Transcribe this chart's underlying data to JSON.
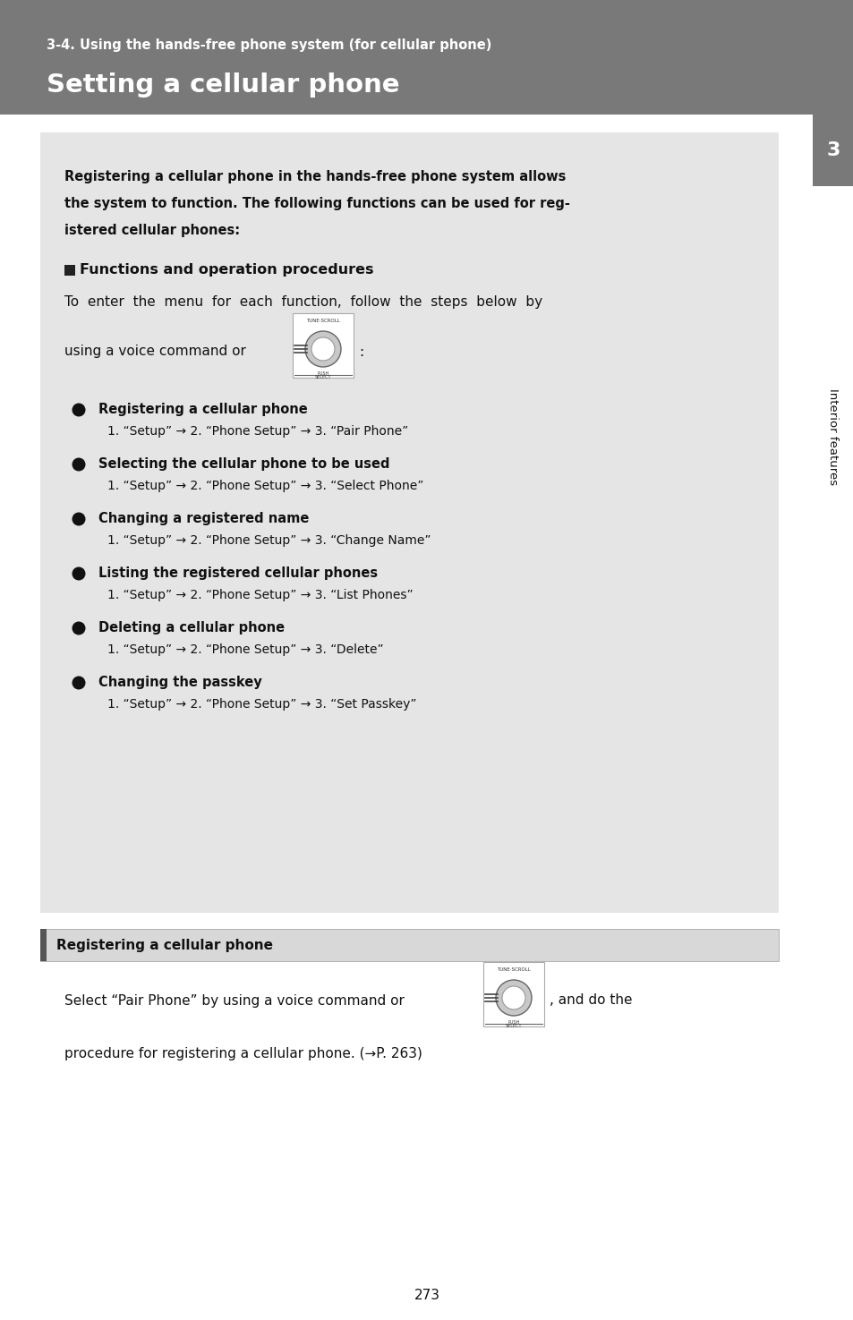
{
  "header_bg": "#797979",
  "header_subtitle": "3-4. Using the hands-free phone system (for cellular phone)",
  "header_title": "Setting a cellular phone",
  "page_bg": "#ffffff",
  "content_bg": "#e5e5e5",
  "sidebar_bg": "#797979",
  "sidebar_number": "3",
  "sidebar_text": "Interior features",
  "page_number": "273",
  "intro_lines": [
    "Registering a cellular phone in the hands-free phone system allows",
    "the system to function. The following functions can be used for reg-",
    "istered cellular phones:"
  ],
  "section_title": "Functions and operation procedures",
  "voice_cmd_text1": "To  enter  the  menu  for  each  function,  follow  the  steps  below  by",
  "voice_cmd_text2": "using a voice command or",
  "voice_cmd_text3": ":",
  "bullet_items": [
    {
      "title": "Registering a cellular phone",
      "step": "1. “Setup” → 2. “Phone Setup” → 3. “Pair Phone”"
    },
    {
      "title": "Selecting the cellular phone to be used",
      "step": "1. “Setup” → 2. “Phone Setup” → 3. “Select Phone”"
    },
    {
      "title": "Changing a registered name",
      "step": "1. “Setup” → 2. “Phone Setup” → 3. “Change Name”"
    },
    {
      "title": "Listing the registered cellular phones",
      "step": "1. “Setup” → 2. “Phone Setup” → 3. “List Phones”"
    },
    {
      "title": "Deleting a cellular phone",
      "step": "1. “Setup” → 2. “Phone Setup” → 3. “Delete”"
    },
    {
      "title": "Changing the passkey",
      "step": "1. “Setup” → 2. “Phone Setup” → 3. “Set Passkey”"
    }
  ],
  "section2_title": "Registering a cellular phone",
  "section2_text1": "Select “Pair Phone” by using a voice command or",
  "section2_text2": ", and do the",
  "section2_text3": "procedure for registering a cellular phone. (→P. 263)"
}
